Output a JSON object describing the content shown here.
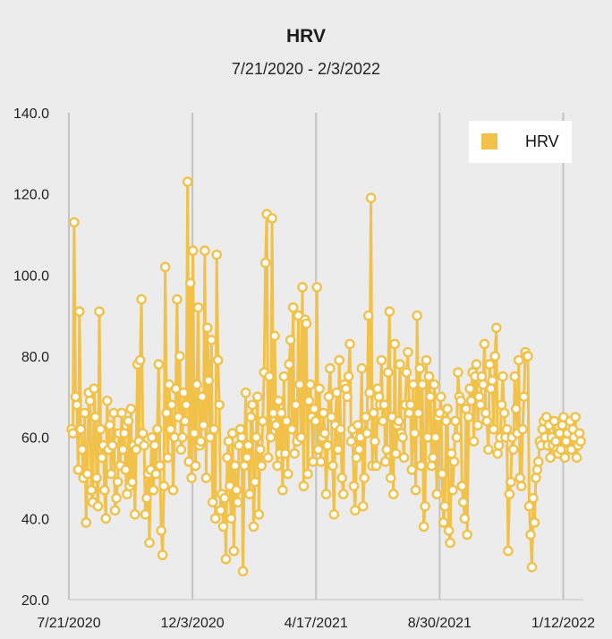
{
  "chart_data": {
    "type": "line",
    "title": "HRV",
    "subtitle": "7/21/2020 - 2/3/2022",
    "xlabel": "",
    "ylabel": "",
    "x_range": [
      "2020-07-21",
      "2022-02-03"
    ],
    "ylim": [
      20,
      140
    ],
    "y_ticks": [
      "20.0",
      "40.0",
      "60.0",
      "80.0",
      "100.0",
      "120.0",
      "140.0"
    ],
    "x_ticks": [
      {
        "label": "7/21/2020",
        "date": "2020-07-21"
      },
      {
        "label": "12/3/2020",
        "date": "2020-12-03"
      },
      {
        "label": "4/17/2021",
        "date": "2021-04-17"
      },
      {
        "label": "8/30/2021",
        "date": "2021-08-30"
      },
      {
        "label": "1/12/2022",
        "date": "2022-01-12"
      }
    ],
    "grid": "vertical",
    "legend": "top-right",
    "series": [
      {
        "name": "HRV",
        "color": "#f1c14a",
        "values": [
          62,
          61,
          113,
          70,
          68,
          52,
          91,
          62,
          57,
          50,
          66,
          39,
          51,
          71,
          69,
          47,
          44,
          72,
          65,
          50,
          43,
          91,
          62,
          55,
          58,
          47,
          40,
          69,
          57,
          63,
          51,
          58,
          66,
          42,
          45,
          49,
          61,
          53,
          66,
          57,
          61,
          52,
          46,
          64,
          48,
          67,
          49,
          58,
          41,
          57,
          78,
          59,
          79,
          94,
          61,
          58,
          41,
          45,
          51,
          34,
          52,
          60,
          47,
          58,
          51,
          62,
          78,
          53,
          37,
          31,
          48,
          102,
          66,
          55,
          73,
          62,
          68,
          47,
          60,
          72,
          94,
          65,
          80,
          57,
          60,
          71,
          64,
          68,
          123,
          54,
          98,
          50,
          106,
          61,
          53,
          73,
          92,
          58,
          59,
          70,
          63,
          106,
          50,
          87,
          74,
          60,
          84,
          44,
          62,
          40,
          105,
          79,
          68,
          42,
          46,
          38,
          45,
          30,
          55,
          59,
          48,
          40,
          61,
          32,
          53,
          47,
          44,
          58,
          62,
          60,
          27,
          53,
          71,
          55,
          58,
          46,
          65,
          68,
          38,
          49,
          60,
          70,
          41,
          57,
          53,
          64,
          76,
          103,
          115,
          55,
          75,
          60,
          114,
          66,
          85,
          63,
          53,
          69,
          56,
          66,
          47,
          75,
          56,
          64,
          51,
          78,
          84,
          62,
          92,
          56,
          68,
          59,
          90,
          73,
          60,
          97,
          48,
          89,
          88,
          51,
          69,
          73,
          65,
          54,
          67,
          64,
          97,
          57,
          72,
          54,
          60,
          66,
          61,
          46,
          58,
          70,
          77,
          65,
          53,
          41,
          63,
          71,
          57,
          79,
          62,
          50,
          46,
          73,
          72,
          70,
          75,
          83,
          59,
          62,
          48,
          42,
          55,
          63,
          57,
          60,
          77,
          43,
          50,
          65,
          61,
          90,
          71,
          119,
          53,
          66,
          59,
          53,
          72,
          70,
          68,
          79,
          64,
          68,
          54,
          57,
          76,
          91,
          50,
          65,
          46,
          83,
          56,
          63,
          64,
          78,
          61,
          60,
          55,
          68,
          76,
          81,
          66,
          68,
          52,
          73,
          61,
          47,
          90,
          66,
          77,
          53,
          73,
          38,
          43,
          79,
          60,
          75,
          70,
          53,
          55,
          73,
          60,
          46,
          65,
          66,
          70,
          51,
          39,
          43,
          64,
          67,
          37,
          34,
          56,
          47,
          54,
          64,
          60,
          76,
          70,
          69,
          48,
          44,
          40,
          67,
          36,
          65,
          72,
          69,
          76,
          59,
          75,
          78,
          63,
          70,
          68,
          75,
          73,
          83,
          66,
          64,
          57,
          78,
          72,
          74,
          62,
          80,
          87,
          56,
          58,
          60,
          68,
          75,
          66,
          60,
          62,
          32,
          46,
          49,
          60,
          57,
          75,
          67,
          61,
          79,
          50,
          48,
          62,
          70,
          81,
          80,
          80,
          43,
          36,
          28,
          45,
          39,
          50,
          52,
          54,
          59,
          58,
          62,
          64,
          60,
          65,
          58,
          63,
          55,
          60,
          58,
          64,
          59,
          57,
          56,
          61,
          57,
          63,
          65,
          55,
          59,
          61,
          57,
          64,
          57,
          62,
          60,
          65,
          55,
          58,
          61,
          59
        ]
      }
    ]
  }
}
